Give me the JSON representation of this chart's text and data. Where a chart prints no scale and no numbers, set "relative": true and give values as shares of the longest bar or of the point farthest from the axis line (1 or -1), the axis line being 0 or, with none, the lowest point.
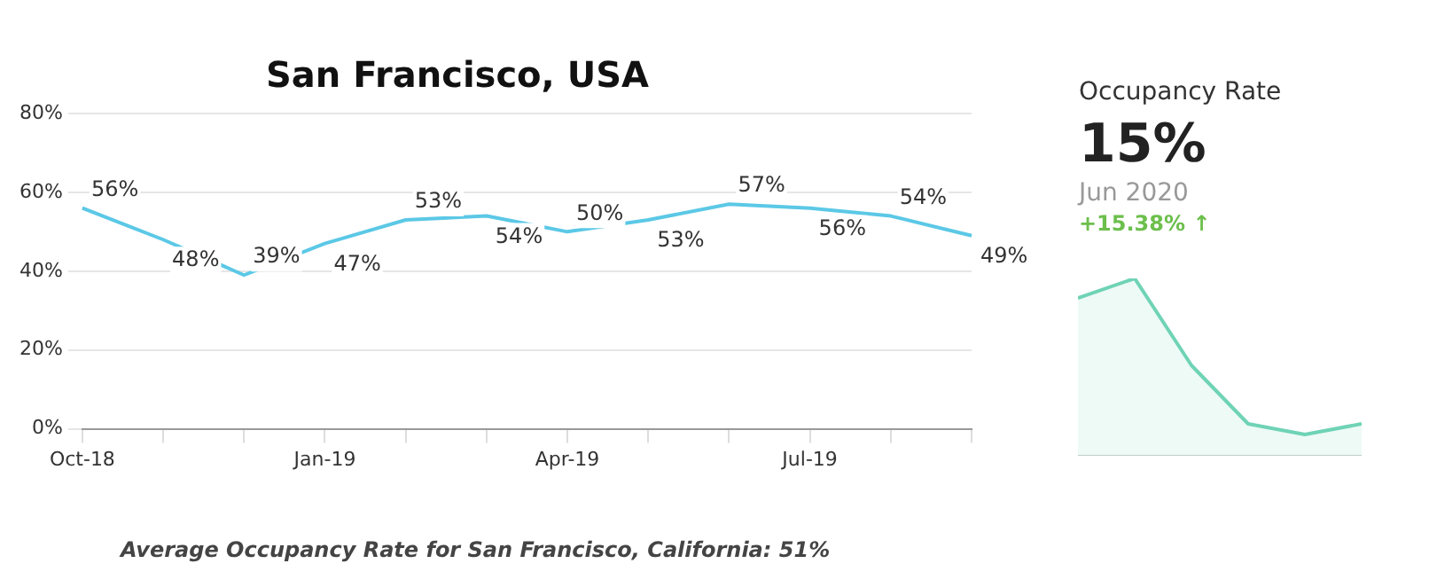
{
  "chart_data": [
    {
      "type": "line",
      "title": "San Francisco, USA",
      "categories": [
        "Oct-18",
        null,
        null,
        "Jan-19",
        null,
        null,
        "Apr-19",
        null,
        null,
        "Jul-19",
        null,
        null
      ],
      "series": [
        {
          "color": "#5bc8e6",
          "values": [
            56,
            48,
            39,
            47,
            53,
            54,
            50,
            53,
            57,
            56,
            54,
            49
          ]
        }
      ],
      "ylim": [
        0,
        80
      ],
      "yticks": [
        {
          "value": 0,
          "label": "0%"
        },
        {
          "value": 20,
          "label": "20%"
        },
        {
          "value": 40,
          "label": "40%"
        },
        {
          "value": 60,
          "label": "60%"
        },
        {
          "value": 80,
          "label": "80%"
        }
      ],
      "value_labels": [
        "56%",
        "48%",
        "39%",
        "47%",
        "53%",
        "54%",
        "50%",
        "53%",
        "57%",
        "56%",
        "54%",
        "49%"
      ],
      "grid": "y",
      "marker": "none",
      "legend": false,
      "annotations": [
        "Average Occupancy Rate for San Francisco, California: 51%"
      ]
    },
    {
      "type": "other",
      "title": "Occupancy Rate",
      "annotations": [
        "15%",
        "Jun 2020",
        "+15.38% ↑"
      ]
    },
    {
      "type": "area",
      "relative": true,
      "categories": [
        null,
        null,
        null,
        null,
        null,
        null
      ],
      "series": [
        {
          "color": "#6fd3b5",
          "values": [
            0.89,
            1,
            0.51,
            0.18,
            0.12,
            0.18
          ]
        }
      ],
      "marker": "none",
      "legend": false
    }
  ]
}
